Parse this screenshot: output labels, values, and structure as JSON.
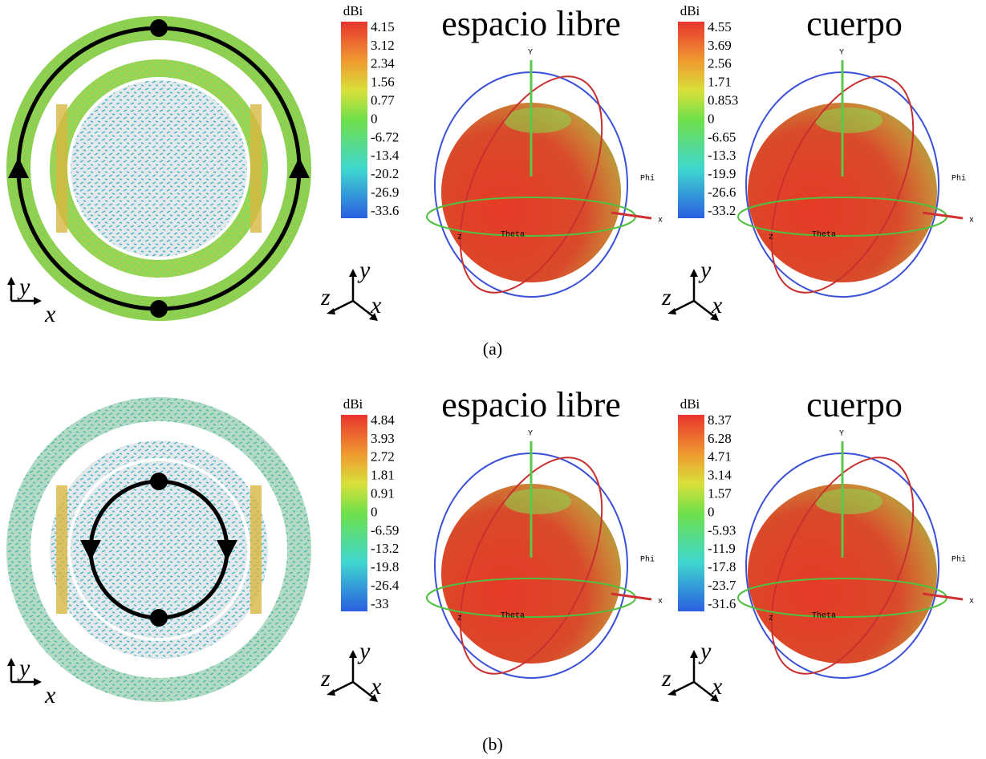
{
  "panels": [
    {
      "caption": "(a)",
      "current_axes": [
        "y",
        "x"
      ],
      "patterns": [
        {
          "title": "espacio libre",
          "unit": "dBi",
          "labels": [
            "4.15",
            "3.12",
            "2.34",
            "1.56",
            "0.77",
            "0",
            "-6.72",
            "-13.4",
            "-20.2",
            "-26.9",
            "-33.6"
          ],
          "scene_labels": [
            "Y",
            "Phi",
            "x",
            "Theta",
            "z"
          ],
          "triad": [
            "z",
            "y",
            "x"
          ]
        },
        {
          "title": "cuerpo",
          "unit": "dBi",
          "labels": [
            "4.55",
            "3.69",
            "2.56",
            "1.71",
            "0.853",
            "0",
            "-6.65",
            "-13.3",
            "-19.9",
            "-26.6",
            "-33.2"
          ],
          "scene_labels": [
            "Y",
            "Phi",
            "x",
            "Theta",
            "z"
          ],
          "triad": [
            "z",
            "y",
            "x"
          ]
        }
      ]
    },
    {
      "caption": "(b)",
      "current_axes": [
        "y",
        "x"
      ],
      "patterns": [
        {
          "title": "espacio libre",
          "unit": "dBi",
          "labels": [
            "4.84",
            "3.93",
            "2.72",
            "1.81",
            "0.91",
            "0",
            "-6.59",
            "-13.2",
            "-19.8",
            "-26.4",
            "-33"
          ],
          "scene_labels": [
            "Y",
            "Phi",
            "x",
            "Theta",
            "z"
          ],
          "triad": [
            "z",
            "y",
            "x"
          ]
        },
        {
          "title": "cuerpo",
          "unit": "dBi",
          "labels": [
            "8.37",
            "6.28",
            "4.71",
            "3.14",
            "1.57",
            "0",
            "-5.93",
            "-11.9",
            "-17.8",
            "-23.7",
            "-31.6"
          ],
          "scene_labels": [
            "Y",
            "Phi",
            "x",
            "Theta",
            "z"
          ],
          "triad": [
            "z",
            "y",
            "x"
          ]
        }
      ]
    }
  ]
}
